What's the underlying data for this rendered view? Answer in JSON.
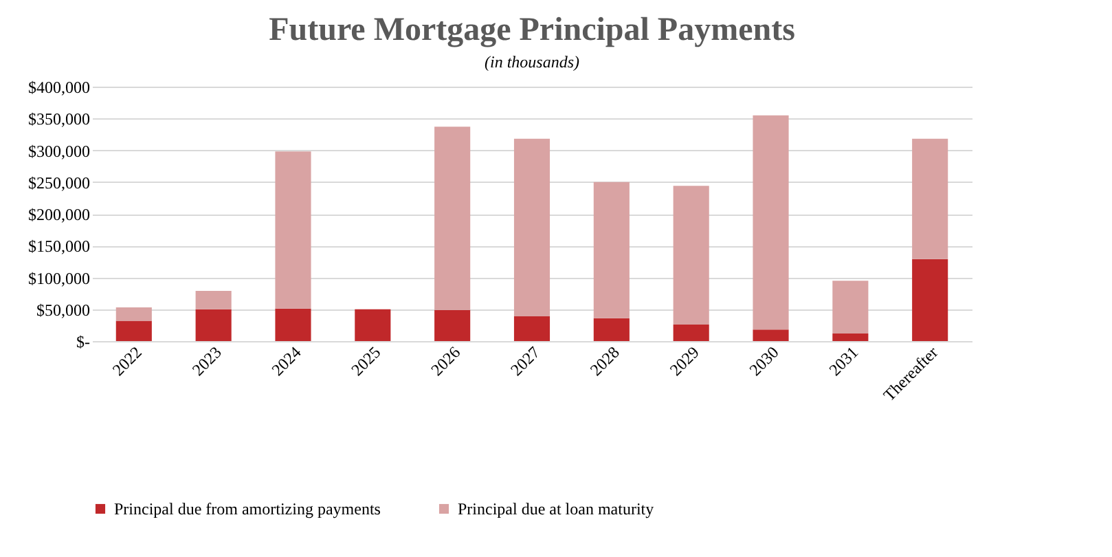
{
  "chart_data": {
    "type": "bar",
    "title": "Future Mortgage Principal Payments",
    "annotations": [
      "(in thousands)"
    ],
    "categories": [
      "2022",
      "2023",
      "2024",
      "2025",
      "2026",
      "2027",
      "2028",
      "2029",
      "2030",
      "2031",
      "Thereafter"
    ],
    "stacked": true,
    "series": [
      {
        "name": "Principal due from amortizing payments",
        "color": "#c0282a",
        "values": [
          32000,
          50000,
          51000,
          50000,
          49000,
          39000,
          36000,
          26000,
          18000,
          12000,
          129000
        ]
      },
      {
        "name": "Principal due at loan maturity",
        "color": "#d9a3a3",
        "values": [
          21000,
          29000,
          247000,
          0,
          288000,
          279000,
          214000,
          218000,
          337000,
          83000,
          189000
        ]
      }
    ],
    "ylim": [
      0,
      400000
    ],
    "yticks": [
      {
        "value": 0,
        "label": "$-"
      },
      {
        "value": 50000,
        "label": "$50,000"
      },
      {
        "value": 100000,
        "label": "$100,000"
      },
      {
        "value": 150000,
        "label": "$150,000"
      },
      {
        "value": 200000,
        "label": "$200,000"
      },
      {
        "value": 250000,
        "label": "$250,000"
      },
      {
        "value": 300000,
        "label": "$300,000"
      },
      {
        "value": 350000,
        "label": "$350,000"
      },
      {
        "value": 400000,
        "label": "$400,000"
      }
    ],
    "grid": "y",
    "legend": "bottom"
  }
}
